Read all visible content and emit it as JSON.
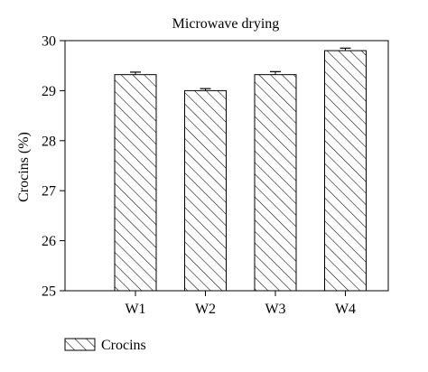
{
  "chart_data": {
    "type": "bar",
    "title": "Microwave drying",
    "xlabel": "",
    "ylabel": "Crocins (%)",
    "categories": [
      "W1",
      "W2",
      "W3",
      "W4"
    ],
    "series": [
      {
        "name": "Crocins",
        "values": [
          29.32,
          29.0,
          29.32,
          29.8
        ],
        "errors": [
          0.05,
          0.04,
          0.06,
          0.05
        ]
      }
    ],
    "ylim": [
      25,
      30
    ],
    "yticks": [
      25,
      26,
      27,
      28,
      29,
      30
    ],
    "grid": false,
    "legend_position": "bottom-left",
    "bar_fill": "diagonal-hatch",
    "bar_color": "#000000"
  }
}
